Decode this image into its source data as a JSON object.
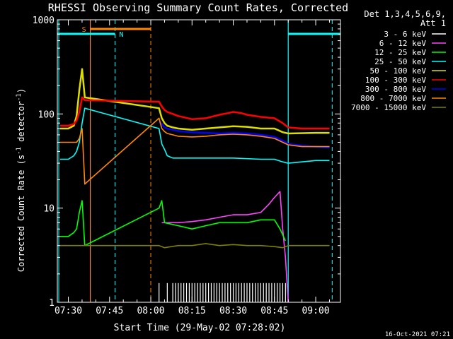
{
  "chart_data": {
    "type": "line",
    "title": "RHESSI Observing Summary Count Rates, Corrected",
    "xlabel": "Start Time (29-May-02 07:28:02)",
    "ylabel": "Corrected Count Rate (s⁻¹ detector⁻¹)",
    "ylabel_parts": {
      "main": "Corrected Count Rate (s",
      "exp1": "-1",
      "mid": " detector",
      "exp2": "-1",
      "end": ")"
    },
    "yscale": "log",
    "ylim": [
      1,
      1000
    ],
    "xlim": [
      "07:26",
      "09:09"
    ],
    "x_ticks": [
      "07:30",
      "07:45",
      "08:00",
      "08:15",
      "08:30",
      "08:45",
      "09:00"
    ],
    "y_ticks": [
      "1",
      "10",
      "100",
      "1000"
    ],
    "legend": {
      "placement": "right",
      "header": [
        "Det 1,3,4,5,6,9,",
        "Att 1"
      ]
    },
    "series": [
      {
        "name": "3 - 6 keV",
        "color": "#ffffff",
        "x": [
          "08:03",
          "08:06",
          "08:08",
          "08:09",
          "08:10",
          "08:11",
          "08:12",
          "08:13",
          "08:14",
          "08:15",
          "08:16",
          "08:17",
          "08:18",
          "08:19",
          "08:20",
          "08:21",
          "08:22",
          "08:23",
          "08:24",
          "08:25",
          "08:26",
          "08:27",
          "08:28",
          "08:29",
          "08:30",
          "08:31",
          "08:32",
          "08:33",
          "08:34",
          "08:35",
          "08:36",
          "08:37",
          "08:38",
          "08:39",
          "08:40",
          "08:41",
          "08:42",
          "08:43",
          "08:44",
          "08:45",
          "08:46",
          "08:47",
          "08:48",
          "08:49"
        ],
        "y": [
          1.6,
          1.6,
          1.6,
          1.6,
          1.6,
          1.6,
          1.6,
          1.6,
          1.6,
          1.6,
          1.6,
          1.6,
          1.6,
          1.6,
          1.6,
          1.6,
          1.6,
          1.6,
          1.6,
          1.6,
          1.6,
          1.6,
          1.6,
          1.6,
          1.6,
          1.6,
          1.6,
          1.6,
          1.6,
          1.6,
          1.6,
          1.6,
          1.6,
          1.6,
          1.6,
          1.6,
          1.6,
          1.6,
          1.6,
          1.6,
          1.6,
          1.6,
          1.6,
          1.6
        ]
      },
      {
        "name": "6 - 12 keV",
        "color": "#ff44ff",
        "x": [
          "08:04",
          "08:10",
          "08:15",
          "08:20",
          "08:25",
          "08:30",
          "08:35",
          "08:40",
          "08:43",
          "08:45",
          "08:47",
          "08:48",
          "08:49",
          "08:50"
        ],
        "y": [
          7,
          7,
          7.2,
          7.5,
          8,
          8.5,
          8.5,
          9,
          11,
          13,
          15,
          6,
          3,
          1
        ]
      },
      {
        "name": "12 - 25 keV",
        "color": "#00ff00",
        "x": [
          "07:27",
          "07:30",
          "07:32",
          "07:33",
          "07:34",
          "07:35",
          "07:36",
          "08:03",
          "08:04",
          "08:05",
          "08:10",
          "08:15",
          "08:20",
          "08:25",
          "08:30",
          "08:35",
          "08:40",
          "08:45",
          "08:47",
          "08:49"
        ],
        "y": [
          5,
          5,
          5.5,
          6,
          9,
          12,
          4,
          10,
          12,
          7,
          6.5,
          6,
          6.5,
          7,
          7,
          7,
          7.5,
          7.5,
          6,
          4.5
        ]
      },
      {
        "name": "25 - 50 keV",
        "color": "#00ffff",
        "x": [
          "07:27",
          "07:30",
          "07:32",
          "07:33",
          "07:34",
          "07:35",
          "07:36",
          "08:03",
          "08:04",
          "08:05",
          "08:06",
          "08:08",
          "08:10",
          "08:15",
          "08:20",
          "08:30",
          "08:40",
          "08:45",
          "08:48",
          "08:50",
          "09:00",
          "09:05"
        ],
        "y": [
          33,
          33,
          36,
          40,
          50,
          80,
          115,
          70,
          48,
          42,
          36,
          34,
          34,
          34,
          34,
          34,
          33,
          33,
          31,
          30,
          32,
          32
        ]
      },
      {
        "name": "50 - 100 keV",
        "color": "#dddd00",
        "x": [
          "07:27",
          "07:30",
          "07:32",
          "07:33",
          "07:34",
          "07:35",
          "07:36",
          "08:03",
          "08:04",
          "08:05",
          "08:06",
          "08:08",
          "08:10",
          "08:15",
          "08:20",
          "08:25",
          "08:30",
          "08:35",
          "08:40",
          "08:45",
          "08:48",
          "08:50",
          "09:00",
          "09:05"
        ],
        "y": [
          70,
          70,
          75,
          95,
          180,
          300,
          150,
          115,
          90,
          80,
          75,
          72,
          70,
          68,
          70,
          72,
          74,
          73,
          70,
          70,
          64,
          62,
          63,
          63
        ]
      },
      {
        "name": "100 - 300 keV",
        "color": "#ff0000",
        "x": [
          "07:27",
          "07:30",
          "07:32",
          "07:33",
          "07:34",
          "07:35",
          "07:36",
          "08:03",
          "08:04",
          "08:05",
          "08:06",
          "08:08",
          "08:10",
          "08:15",
          "08:20",
          "08:25",
          "08:28",
          "08:30",
          "08:33",
          "08:35",
          "08:40",
          "08:45",
          "08:48",
          "08:50",
          "08:55",
          "09:00",
          "09:05"
        ],
        "y": [
          75,
          75,
          78,
          85,
          105,
          150,
          140,
          135,
          120,
          110,
          105,
          100,
          95,
          88,
          90,
          98,
          102,
          105,
          102,
          98,
          93,
          90,
          80,
          72,
          70,
          70,
          70
        ]
      },
      {
        "name": "300 - 800 keV",
        "color": "#0000ff",
        "x": [
          "08:03",
          "08:04",
          "08:05",
          "08:06",
          "08:08",
          "08:10",
          "08:15",
          "08:20",
          "08:25",
          "08:30",
          "08:35",
          "08:40",
          "08:45",
          "08:48",
          "08:50",
          "08:55",
          "09:00",
          "09:05"
        ],
        "y": [
          82,
          78,
          72,
          70,
          68,
          66,
          64,
          63,
          62,
          63,
          62,
          60,
          57,
          52,
          48,
          46,
          45,
          44
        ]
      },
      {
        "name": "800 - 7000 keV",
        "color": "#ff8800",
        "x": [
          "07:27",
          "07:30",
          "07:32",
          "07:33",
          "07:34",
          "07:35",
          "07:36",
          "08:03",
          "08:04",
          "08:05",
          "08:06",
          "08:08",
          "08:10",
          "08:15",
          "08:20",
          "08:25",
          "08:30",
          "08:35",
          "08:40",
          "08:45",
          "08:48",
          "08:50",
          "08:55",
          "09:00",
          "09:05"
        ],
        "y": [
          50,
          50,
          50,
          50,
          55,
          70,
          18,
          90,
          70,
          65,
          62,
          60,
          58,
          57,
          58,
          60,
          61,
          60,
          58,
          55,
          50,
          47,
          45,
          45,
          45
        ]
      },
      {
        "name": "7000 - 15000 keV",
        "color": "#808000",
        "x": [
          "07:27",
          "07:30",
          "07:32",
          "07:33",
          "07:34",
          "07:35",
          "08:03",
          "08:05",
          "08:10",
          "08:15",
          "08:20",
          "08:25",
          "08:30",
          "08:35",
          "08:40",
          "08:45",
          "08:48",
          "08:50",
          "09:00",
          "09:05"
        ],
        "y": [
          4,
          4,
          4,
          4,
          4,
          4,
          4,
          3.8,
          4,
          4,
          4.2,
          4,
          4.1,
          4,
          4,
          3.9,
          3.8,
          4,
          4,
          4
        ]
      }
    ],
    "annotations": {
      "s_label": "S",
      "n_label": "N",
      "timestamp": "16-Oct-2021 07:21"
    }
  }
}
